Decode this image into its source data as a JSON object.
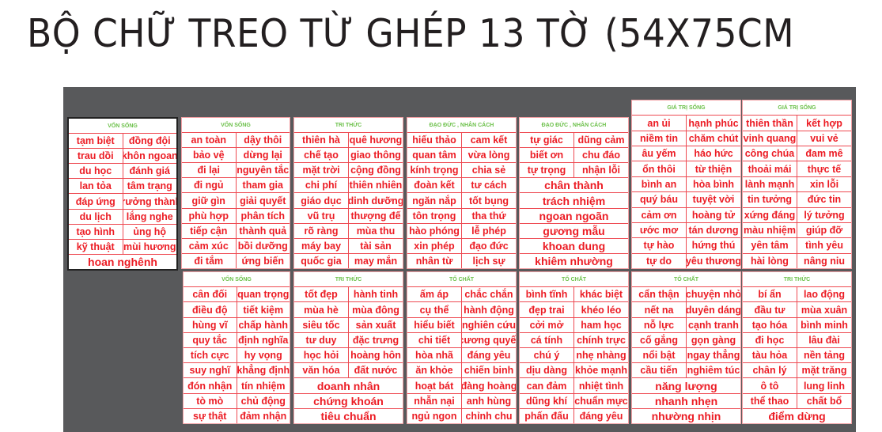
{
  "title": "BỘ CHỮ TREO TỪ GHÉP 13 TỜ (54X75CM",
  "colors": {
    "board": "#58595b",
    "word_text": "#ec1c24",
    "grid_line": "#ee4a52",
    "header_text": "#6cc04a"
  },
  "panels": [
    {
      "title": "VỐN SỐNG",
      "rows": [
        [
          "tạm biệt",
          "đồng đội"
        ],
        [
          "trau dồi",
          "khôn ngoan"
        ],
        [
          "du học",
          "đánh giá"
        ],
        [
          "lan tỏa",
          "tâm trạng"
        ],
        [
          "đáp ứng",
          "trưởng thành"
        ],
        [
          "du lịch",
          "lắng nghe"
        ],
        [
          "tạo hình",
          "ủng hộ"
        ],
        [
          "kỹ thuật",
          "mùi hương"
        ],
        [
          "hoan nghênh"
        ]
      ]
    },
    {
      "title": "VỐN SỐNG",
      "rows": [
        [
          "an toàn",
          "dậy thôi"
        ],
        [
          "bảo vệ",
          "dừng lại"
        ],
        [
          "đi lại",
          "nguyên tắc"
        ],
        [
          "đi ngủ",
          "tham gia"
        ],
        [
          "giữ gìn",
          "giải quyết"
        ],
        [
          "phù hợp",
          "phân tích"
        ],
        [
          "tiếp cận",
          "thành quả"
        ],
        [
          "cảm xúc",
          "bồi dưỡng"
        ],
        [
          "đi tắm",
          "ứng biến"
        ]
      ]
    },
    {
      "title": "TRI THỨC",
      "rows": [
        [
          "thiên hà",
          "quê hương"
        ],
        [
          "chế tạo",
          "giao thông"
        ],
        [
          "mặt trời",
          "cộng đồng"
        ],
        [
          "chi phí",
          "thiên nhiên"
        ],
        [
          "giáo dục",
          "dinh dưỡng"
        ],
        [
          "vũ trụ",
          "thượng đế"
        ],
        [
          "rõ ràng",
          "mùa thu"
        ],
        [
          "máy bay",
          "tài sản"
        ],
        [
          "quốc gia",
          "may mắn"
        ]
      ]
    },
    {
      "title": "ĐẠO ĐỨC , NHÂN CÁCH",
      "rows": [
        [
          "hiếu thảo",
          "cam kết"
        ],
        [
          "quan tâm",
          "vừa lòng"
        ],
        [
          "kính trọng",
          "chia sẻ"
        ],
        [
          "đoàn kết",
          "tư cách"
        ],
        [
          "ngăn nắp",
          "tốt bụng"
        ],
        [
          "tôn trọng",
          "tha thứ"
        ],
        [
          "hào phóng",
          "lễ phép"
        ],
        [
          "xin phép",
          "đạo đức"
        ],
        [
          "nhân từ",
          "lịch sự"
        ]
      ]
    },
    {
      "title": "ĐẠO ĐỨC , NHÂN CÁCH",
      "rows": [
        [
          "tự giác",
          "dũng cảm"
        ],
        [
          "biết ơn",
          "chu đáo"
        ],
        [
          "tự trọng",
          "nhận lỗi"
        ],
        [
          "chân thành"
        ],
        [
          "trách nhiệm"
        ],
        [
          "ngoan ngoãn"
        ],
        [
          "gương mẫu"
        ],
        [
          "khoan dung"
        ],
        [
          "khiêm nhường"
        ]
      ]
    },
    {
      "title": "GIÁ TRỊ SỐNG",
      "rows": [
        [
          "an ủi",
          "hạnh phúc"
        ],
        [
          "niềm tin",
          "chăm chút"
        ],
        [
          "âu yếm",
          "háo hức"
        ],
        [
          "ổn thôi",
          "từ thiện"
        ],
        [
          "bình an",
          "hòa bình"
        ],
        [
          "quý báu",
          "tuyệt vời"
        ],
        [
          "cảm ơn",
          "hoàng tử"
        ],
        [
          "ước mơ",
          "tán dương"
        ],
        [
          "tự hào",
          "hứng thú"
        ],
        [
          "tự do",
          "yêu thương"
        ]
      ]
    },
    {
      "title": "GIÁ TRỊ SỐNG",
      "rows": [
        [
          "thiên thần",
          "kết hợp"
        ],
        [
          "vinh quang",
          "vui vẻ"
        ],
        [
          "công chúa",
          "đam mê"
        ],
        [
          "thoải mái",
          "thực tế"
        ],
        [
          "lành mạnh",
          "xin lỗi"
        ],
        [
          "tin tưởng",
          "đức tin"
        ],
        [
          "xứng đáng",
          "lý tưởng"
        ],
        [
          "màu nhiệm",
          "giúp đỡ"
        ],
        [
          "yên tâm",
          "tình yêu"
        ],
        [
          "hài lòng",
          "nâng niu"
        ]
      ]
    },
    {
      "title": "VỐN SỐNG",
      "rows": [
        [
          "cân đối",
          "quan trọng"
        ],
        [
          "điều độ",
          "tiết kiệm"
        ],
        [
          "hùng vĩ",
          "chấp hành"
        ],
        [
          "quy tắc",
          "định nghĩa"
        ],
        [
          "tích cực",
          "hy vọng"
        ],
        [
          "suy nghĩ",
          "khẳng định"
        ],
        [
          "đón nhận",
          "tín nhiệm"
        ],
        [
          "tò mò",
          "chủ động"
        ],
        [
          "sự thật",
          "đảm nhận"
        ]
      ]
    },
    {
      "title": "TRI THỨC",
      "rows": [
        [
          "tốt đẹp",
          "hành tinh"
        ],
        [
          "mùa hè",
          "mùa đông"
        ],
        [
          "siêu tốc",
          "sản xuất"
        ],
        [
          "tư duy",
          "đặc trưng"
        ],
        [
          "học hỏi",
          "hoàng hôn"
        ],
        [
          "văn hóa",
          "đất nước"
        ],
        [
          "doanh nhân"
        ],
        [
          "chứng khoán"
        ],
        [
          "tiêu chuẩn"
        ]
      ]
    },
    {
      "title": "TỐ CHẤT",
      "rows": [
        [
          "ấm áp",
          "chắc chắn"
        ],
        [
          "cụ thể",
          "hành động"
        ],
        [
          "hiểu biết",
          "nghiên cứu"
        ],
        [
          "chi tiết",
          "cương quyết"
        ],
        [
          "hòa nhã",
          "đáng yêu"
        ],
        [
          "ăn khỏe",
          "chiến binh"
        ],
        [
          "hoạt bát",
          "đàng hoàng"
        ],
        [
          "nhẫn nại",
          "anh hùng"
        ],
        [
          "ngủ ngon",
          "chỉnh chu"
        ]
      ]
    },
    {
      "title": "TỐ CHẤT",
      "rows": [
        [
          "bình tĩnh",
          "khác biệt"
        ],
        [
          "đẹp trai",
          "khéo léo"
        ],
        [
          "cởi mở",
          "ham học"
        ],
        [
          "cá tính",
          "chính trực"
        ],
        [
          "chú ý",
          "nhẹ nhàng"
        ],
        [
          "dịu dàng",
          "khỏe mạnh"
        ],
        [
          "can đảm",
          "nhiệt tình"
        ],
        [
          "dũng khí",
          "chuẩn mực"
        ],
        [
          "phấn đấu",
          "đáng yêu"
        ]
      ]
    },
    {
      "title": "TỐ CHẤT",
      "rows": [
        [
          "cẩn thận",
          "chuyện nhỏ"
        ],
        [
          "nết na",
          "duyên dáng"
        ],
        [
          "nỗ lực",
          "cạnh tranh"
        ],
        [
          "cố gắng",
          "gọn gàng"
        ],
        [
          "nổi bật",
          "ngay thẳng"
        ],
        [
          "cầu tiến",
          "nghiêm túc"
        ],
        [
          "năng lượng"
        ],
        [
          "nhanh nhẹn"
        ],
        [
          "nhường nhịn"
        ]
      ]
    },
    {
      "title": "TRI THỨC",
      "rows": [
        [
          "bí ẩn",
          "lao động"
        ],
        [
          "đầu tư",
          "mùa xuân"
        ],
        [
          "tạo hóa",
          "bình minh"
        ],
        [
          "đi học",
          "lâu đài"
        ],
        [
          "tàu hỏa",
          "nền tảng"
        ],
        [
          "chân lý",
          "mặt trăng"
        ],
        [
          "ô tô",
          "lung linh"
        ],
        [
          "thể thao",
          "chất bổ"
        ],
        [
          "điểm dừng"
        ]
      ]
    }
  ]
}
